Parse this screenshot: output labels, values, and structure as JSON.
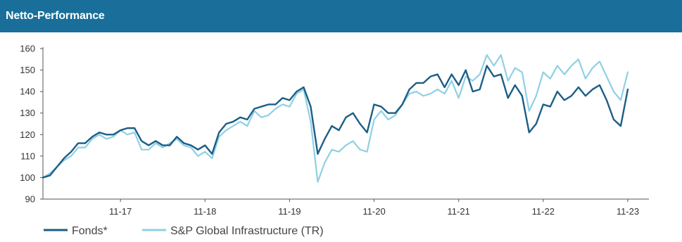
{
  "header": {
    "title": "Netto-Performance"
  },
  "colors": {
    "header_bg": "#196f99",
    "series_fonds": "#1b5e86",
    "series_index": "#8fd0e4"
  },
  "chart_data": {
    "type": "line",
    "title": "Netto-Performance",
    "xlabel": "",
    "ylabel": "",
    "ylim": [
      90,
      160
    ],
    "yticks": [
      90,
      100,
      110,
      120,
      130,
      140,
      150,
      160
    ],
    "xlim": [
      0,
      86
    ],
    "xticks": [
      {
        "label": "11-17",
        "x": 11
      },
      {
        "label": "11-18",
        "x": 23
      },
      {
        "label": "11-19",
        "x": 35
      },
      {
        "label": "11-20",
        "x": 47
      },
      {
        "label": "11-21",
        "x": 59
      },
      {
        "label": "11-22",
        "x": 71
      },
      {
        "label": "11-23",
        "x": 83
      }
    ],
    "grid": false,
    "legend": "bottom-left",
    "series": [
      {
        "name": "Fonds*",
        "values": [
          100,
          101,
          105,
          109,
          112,
          116,
          116,
          119,
          121,
          120,
          120,
          122,
          123,
          123,
          117,
          115,
          117,
          115,
          115,
          119,
          116,
          115,
          113,
          115,
          111,
          121,
          125,
          126,
          128,
          127,
          132,
          133,
          134,
          134,
          137,
          136,
          140,
          142,
          133,
          111,
          118,
          124,
          122,
          128,
          130,
          125,
          121,
          134,
          133,
          130,
          130,
          134,
          141,
          144,
          144,
          147,
          148,
          142,
          148,
          143,
          150,
          140,
          141,
          152,
          147,
          148,
          137,
          143,
          138,
          121,
          125,
          134,
          133,
          140,
          136,
          138,
          142,
          138,
          141,
          143,
          136,
          127,
          124,
          141
        ]
      },
      {
        "name": "S&P Global Infrastructure (TR)",
        "values": [
          100,
          102,
          105,
          108,
          110,
          114,
          114,
          118,
          120,
          118,
          119,
          122,
          120,
          121,
          113,
          113,
          116,
          114,
          116,
          118,
          115,
          114,
          110,
          112,
          109,
          119,
          122,
          124,
          126,
          124,
          131,
          128,
          129,
          132,
          134,
          133,
          139,
          141,
          126,
          98,
          107,
          113,
          112,
          115,
          117,
          113,
          112,
          127,
          131,
          127,
          129,
          134,
          139,
          140,
          138,
          139,
          141,
          139,
          145,
          137,
          147,
          145,
          148,
          157,
          152,
          157,
          145,
          151,
          149,
          131,
          138,
          149,
          146,
          152,
          148,
          152,
          155,
          146,
          151,
          154,
          147,
          140,
          136,
          149
        ]
      }
    ]
  }
}
